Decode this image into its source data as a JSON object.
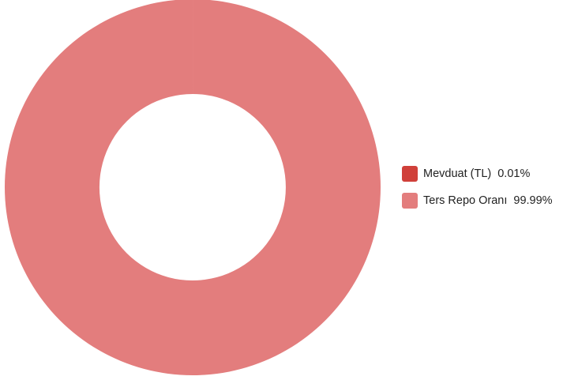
{
  "chart_data": {
    "type": "pie",
    "style": "donut",
    "legend_position": "right",
    "slices": [
      {
        "label": "Mevduat (TL)",
        "value": 0.01,
        "percent_label": "0.01%",
        "color": "#d0403a"
      },
      {
        "label": "Ters Repo Oranı",
        "value": 99.99,
        "percent_label": "99.99%",
        "color": "#e37d7d"
      }
    ]
  }
}
